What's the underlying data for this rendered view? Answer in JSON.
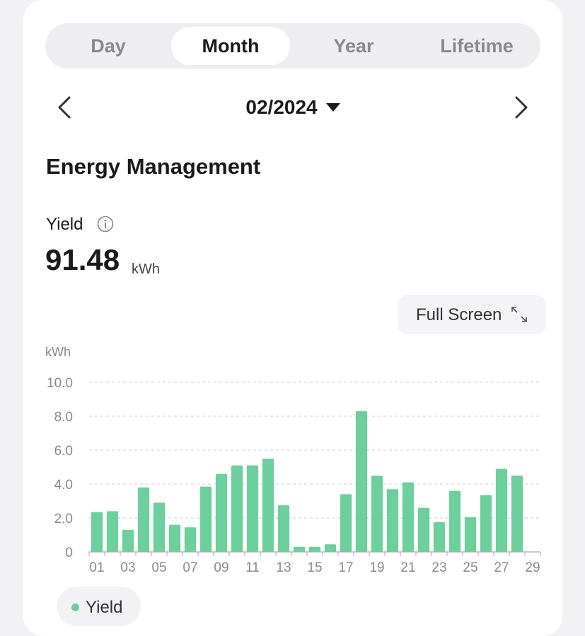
{
  "tabs": [
    {
      "label": "Day",
      "active": false
    },
    {
      "label": "Month",
      "active": true
    },
    {
      "label": "Year",
      "active": false
    },
    {
      "label": "Lifetime",
      "active": false
    }
  ],
  "date": {
    "label": "02/2024"
  },
  "section_title": "Energy Management",
  "yield": {
    "label": "Yield",
    "value": "91.48",
    "unit": "kWh"
  },
  "full_screen_label": "Full Screen",
  "legend": {
    "label": "Yield"
  },
  "colors": {
    "bar": "#6ccf9d",
    "accent": "#1a1a1a"
  },
  "icons": {
    "prev": "chevron-left-icon",
    "next": "chevron-right-icon",
    "dropdown": "caret-down-icon",
    "info": "info-icon",
    "full_screen": "expand-icon"
  },
  "chart_data": {
    "type": "bar",
    "ylabel": "kWh",
    "ylim": [
      0,
      10
    ],
    "yticks": [
      "0",
      "2.0",
      "4.0",
      "6.0",
      "8.0",
      "10.0"
    ],
    "categories": [
      "01",
      "02",
      "03",
      "04",
      "05",
      "06",
      "07",
      "08",
      "09",
      "10",
      "11",
      "12",
      "13",
      "14",
      "15",
      "16",
      "17",
      "18",
      "19",
      "20",
      "21",
      "22",
      "23",
      "24",
      "25",
      "26",
      "27",
      "28",
      "29"
    ],
    "xtick_labels": [
      "01",
      "03",
      "05",
      "07",
      "09",
      "11",
      "13",
      "15",
      "17",
      "19",
      "21",
      "23",
      "25",
      "27",
      "29"
    ],
    "values": [
      2.35,
      2.4,
      1.3,
      3.8,
      2.9,
      1.6,
      1.45,
      3.85,
      4.6,
      5.1,
      5.1,
      5.5,
      2.75,
      0.3,
      0.3,
      0.45,
      3.4,
      8.3,
      4.5,
      3.7,
      4.1,
      2.6,
      1.75,
      3.6,
      2.05,
      3.35,
      4.9,
      4.5,
      0
    ],
    "series": [
      {
        "name": "Yield"
      }
    ],
    "grid": true,
    "legend_position": "bottom-left"
  }
}
